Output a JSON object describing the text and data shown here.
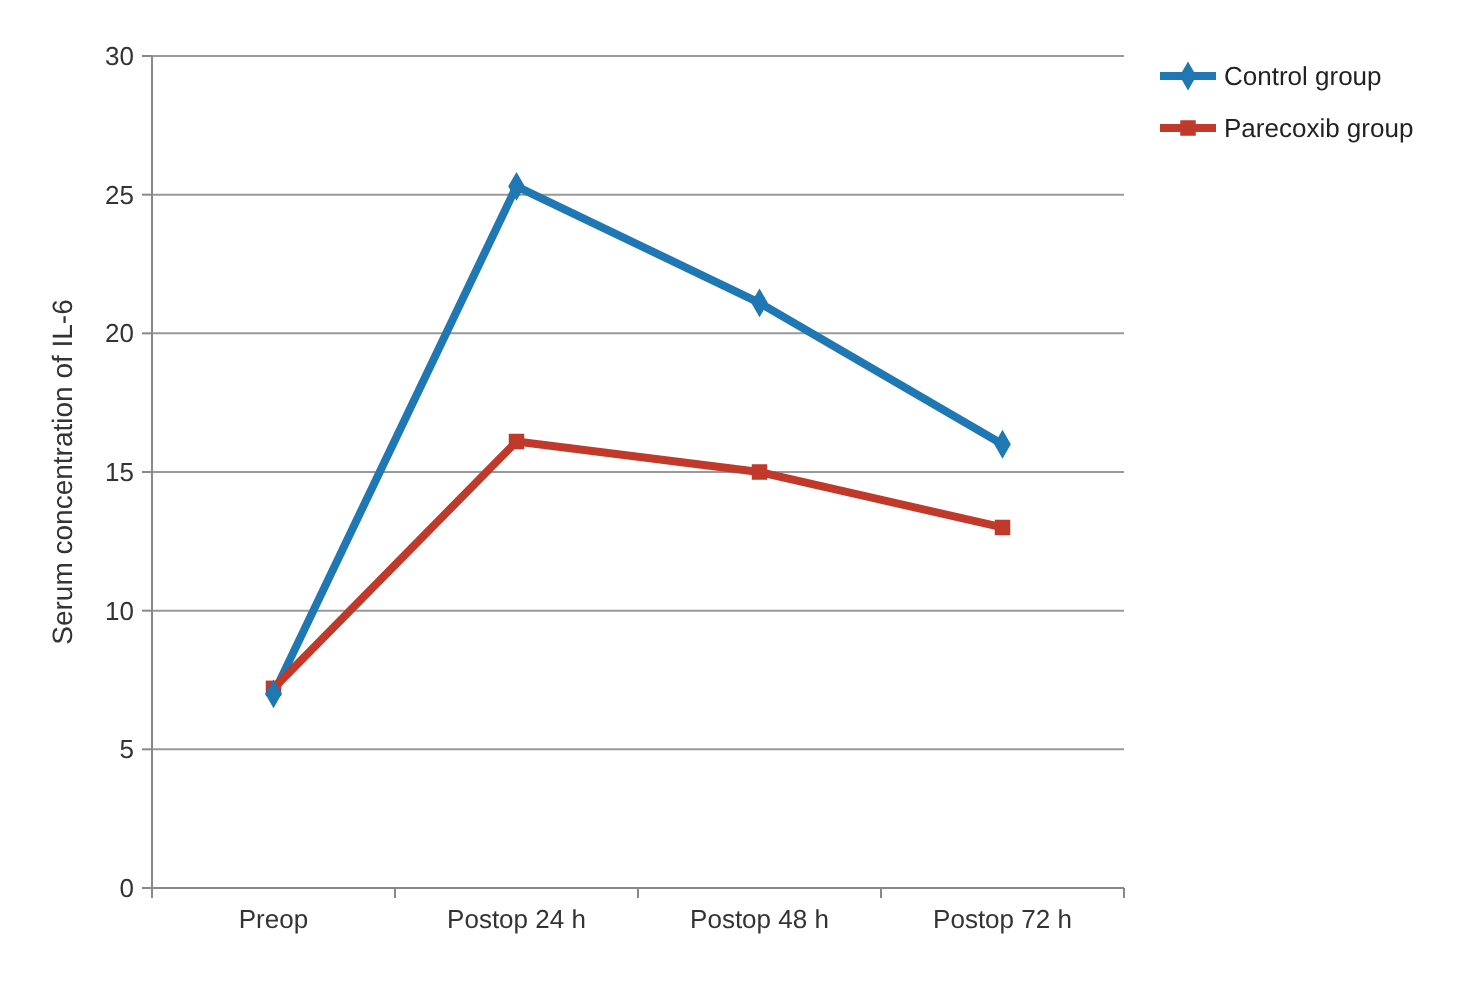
{
  "chart_data": {
    "type": "line",
    "ylabel": "Serum concentration of IL-6",
    "categories": [
      "Preop",
      "Postop 24 h",
      "Postop 48 h",
      "Postop 72 h"
    ],
    "series": [
      {
        "name": "Control group",
        "color": "#1f77b4",
        "values": [
          7,
          25.3,
          21.1,
          16
        ],
        "marker": "diamond"
      },
      {
        "name": "Parecoxib group",
        "color": "#c0392b",
        "values": [
          7.2,
          16.1,
          15,
          13
        ],
        "marker": "square"
      }
    ],
    "ylim": [
      0,
      30
    ],
    "yticks": [
      0,
      5,
      10,
      15,
      20,
      25,
      30
    ],
    "grid": "y",
    "legend": "top right",
    "line_style": "solid"
  }
}
